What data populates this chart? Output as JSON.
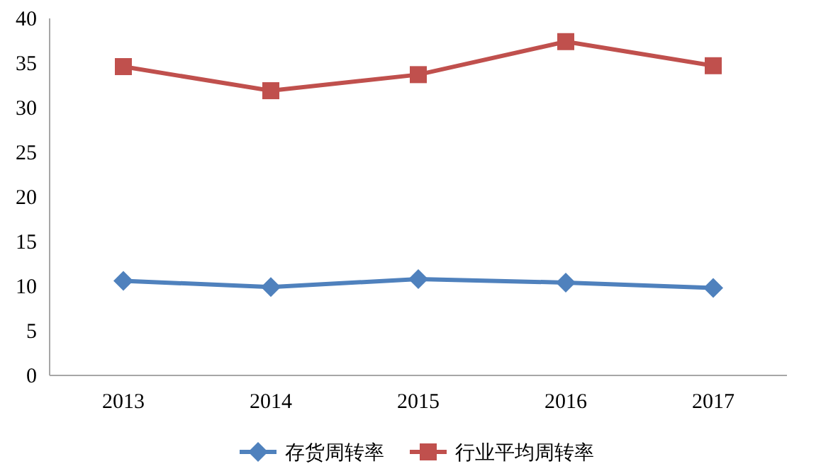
{
  "chart_data": {
    "type": "line",
    "categories": [
      "2013",
      "2014",
      "2015",
      "2016",
      "2017"
    ],
    "series": [
      {
        "name": "存货周转率",
        "color": "#4f81bd",
        "marker": "diamond",
        "values": [
          10.6,
          9.9,
          10.8,
          10.4,
          9.8
        ]
      },
      {
        "name": "行业平均周转率",
        "color": "#c0504d",
        "marker": "square",
        "values": [
          34.6,
          31.9,
          33.7,
          37.4,
          34.7
        ]
      }
    ],
    "ylim": [
      0,
      40
    ],
    "yticks": [
      0,
      5,
      10,
      15,
      20,
      25,
      30,
      35,
      40
    ],
    "grid": false,
    "legend": "bottom"
  }
}
